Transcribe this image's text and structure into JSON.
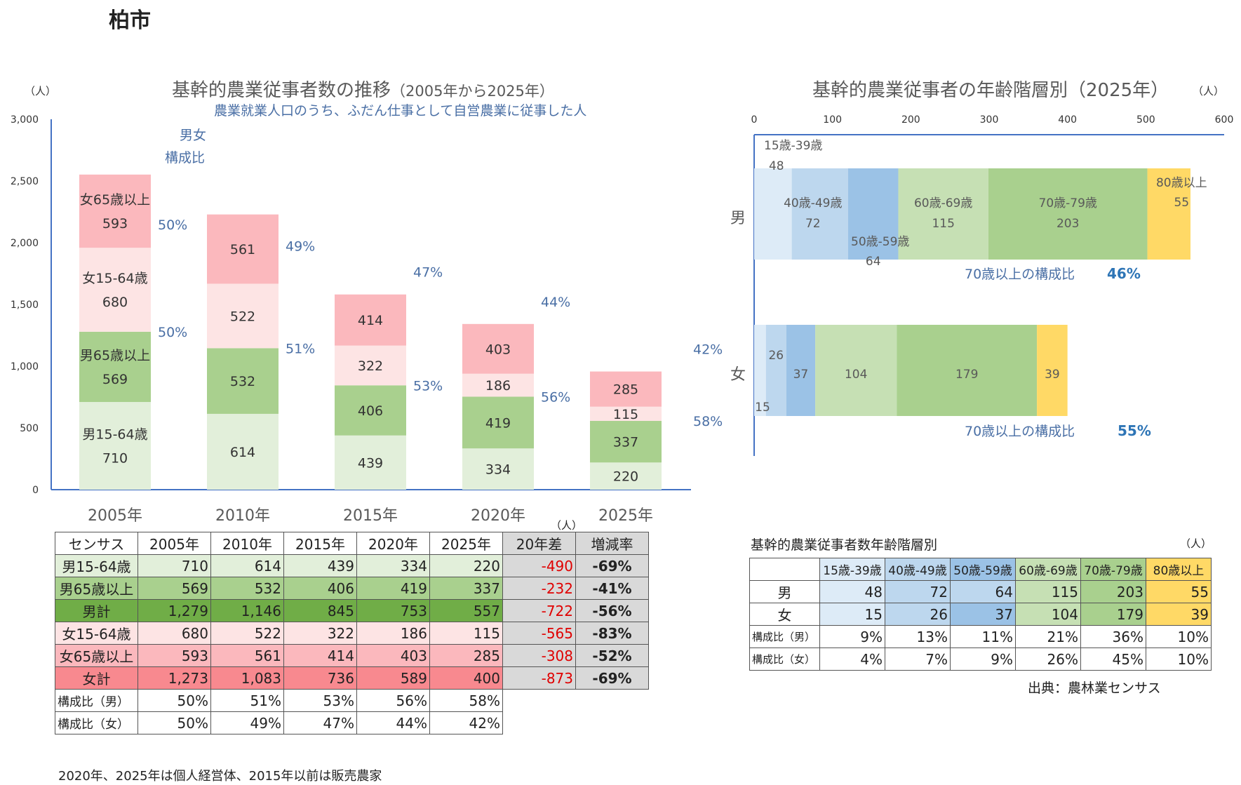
{
  "page_title": "柏市",
  "colors": {
    "male_15_64": "#e2efda",
    "male_65": "#a9d08e",
    "male_total": "#70ad47",
    "female_15_64": "#fde4e4",
    "female_65": "#fbb8bd",
    "female_total": "#f8898f",
    "ratio_text": "#4a6fa5",
    "age_15_39": "#ddebf7",
    "age_40_49": "#bdd7ee",
    "age_50_59": "#9bc2e6",
    "age_60_69": "#c6e0b4",
    "age_70_79": "#a9d08e",
    "age_80": "#ffd966",
    "diff_text": "#e00000",
    "gray": "#d9d9d9"
  },
  "chart_data": [
    {
      "type": "bar",
      "stacked": true,
      "title": "基幹的農業従事者数の推移",
      "title_suffix": "（2005年から2025年）",
      "subtitle": "農業就業人口のうち、ふだん仕事として自営農業に従事した人",
      "unit": "（人）",
      "annotation": [
        "男女",
        "構成比"
      ],
      "categories": [
        "2005年",
        "2010年",
        "2015年",
        "2020年",
        "2025年"
      ],
      "ylim": [
        0,
        3000
      ],
      "yticks": [
        "0",
        "500",
        "1,000",
        "1,500",
        "2,000",
        "2,500",
        "3,000"
      ],
      "grid": false,
      "series": [
        {
          "name": "男15-64歳",
          "values": [
            710,
            614,
            439,
            334,
            220
          ]
        },
        {
          "name": "男65歳以上",
          "values": [
            569,
            532,
            406,
            419,
            337
          ]
        },
        {
          "name": "女15-64歳",
          "values": [
            680,
            522,
            322,
            186,
            115
          ]
        },
        {
          "name": "女65歳以上",
          "values": [
            593,
            561,
            414,
            403,
            285
          ]
        }
      ],
      "ratio_male": [
        "50%",
        "51%",
        "53%",
        "56%",
        "58%"
      ],
      "ratio_female": [
        "50%",
        "49%",
        "47%",
        "44%",
        "42%"
      ]
    },
    {
      "type": "bar",
      "orientation": "horizontal",
      "stacked": true,
      "title": "基幹的農業従事者の年齢階層別（2025年）",
      "unit": "（人）",
      "xlim": [
        0,
        600
      ],
      "xticks": [
        "0",
        "100",
        "200",
        "300",
        "400",
        "500",
        "600"
      ],
      "categories": [
        "男",
        "女"
      ],
      "series": [
        {
          "name": "15歳-39歳",
          "values": [
            48,
            15
          ]
        },
        {
          "name": "40歳-49歳",
          "values": [
            72,
            26
          ]
        },
        {
          "name": "50歳-59歳",
          "values": [
            64,
            37
          ]
        },
        {
          "name": "60歳-69歳",
          "values": [
            115,
            104
          ]
        },
        {
          "name": "70歳-79歳",
          "values": [
            203,
            179
          ]
        },
        {
          "name": "80歳以上",
          "values": [
            55,
            39
          ]
        }
      ],
      "ratio_label": "70歳以上の構成比",
      "ratio_values": [
        "46%",
        "55%"
      ]
    }
  ],
  "census_table": {
    "unit": "（人）",
    "headers": [
      "センサス",
      "2005年",
      "2010年",
      "2015年",
      "2020年",
      "2025年",
      "20年差",
      "増減率"
    ],
    "rows": [
      {
        "label": "男15-64歳",
        "values": [
          "710",
          "614",
          "439",
          "334",
          "220"
        ],
        "diff": "-490",
        "rate": "-69%"
      },
      {
        "label": "男65歳以上",
        "values": [
          "569",
          "532",
          "406",
          "419",
          "337"
        ],
        "diff": "-232",
        "rate": "-41%"
      },
      {
        "label": "男計",
        "values": [
          "1,279",
          "1,146",
          "845",
          "753",
          "557"
        ],
        "diff": "-722",
        "rate": "-56%"
      },
      {
        "label": "女15-64歳",
        "values": [
          "680",
          "522",
          "322",
          "186",
          "115"
        ],
        "diff": "-565",
        "rate": "-83%"
      },
      {
        "label": "女65歳以上",
        "values": [
          "593",
          "561",
          "414",
          "403",
          "285"
        ],
        "diff": "-308",
        "rate": "-52%"
      },
      {
        "label": "女計",
        "values": [
          "1,273",
          "1,083",
          "736",
          "589",
          "400"
        ],
        "diff": "-873",
        "rate": "-69%"
      }
    ],
    "ratio_rows": [
      {
        "label": "構成比（男）",
        "values": [
          "50%",
          "51%",
          "53%",
          "56%",
          "58%"
        ]
      },
      {
        "label": "構成比（女）",
        "values": [
          "50%",
          "49%",
          "47%",
          "44%",
          "42%"
        ]
      }
    ]
  },
  "age_table": {
    "title": "基幹的農業従事者数年齢階層別",
    "unit": "（人）",
    "headers": [
      "",
      "15歳-39歳",
      "40歳-49歳",
      "50歳-59歳",
      "60歳-69歳",
      "70歳-79歳",
      "80歳以上"
    ],
    "rows": [
      {
        "label": "男",
        "values": [
          "48",
          "72",
          "64",
          "115",
          "203",
          "55"
        ]
      },
      {
        "label": "女",
        "values": [
          "15",
          "26",
          "37",
          "104",
          "179",
          "39"
        ]
      }
    ],
    "ratio_rows": [
      {
        "label": "構成比（男）",
        "values": [
          "9%",
          "13%",
          "11%",
          "21%",
          "36%",
          "10%"
        ]
      },
      {
        "label": "構成比（女）",
        "values": [
          "4%",
          "7%",
          "9%",
          "26%",
          "45%",
          "10%"
        ]
      }
    ]
  },
  "source": "出典：農林業センサス",
  "footnote": "2020年、2025年は個人経営体、2015年以前は販売農家"
}
